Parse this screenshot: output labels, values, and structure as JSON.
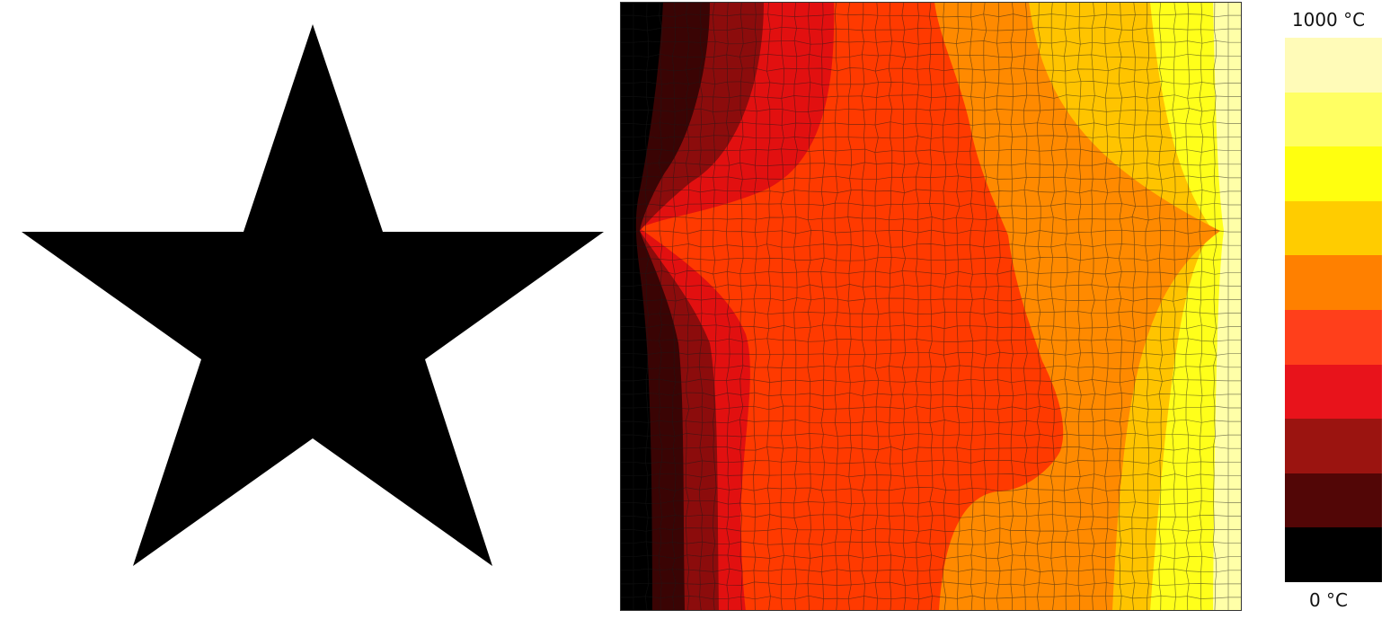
{
  "colorbar": {
    "max_label": "1000 °C",
    "min_label": "0 °C",
    "bands_top_to_bottom": [
      "#fffbb8",
      "#ffff63",
      "#ffff0f",
      "#ffcc00",
      "#ff8000",
      "#ff3f1b",
      "#e8131b",
      "#9b1410",
      "#520606",
      "#000000"
    ]
  },
  "contour": {
    "fill_colors": [
      "#000000",
      "#3a0404",
      "#8c0c0c",
      "#e21010",
      "#ff3a00",
      "#ff8a00",
      "#ffc400",
      "#ffff1a",
      "#ffffa8"
    ]
  }
}
